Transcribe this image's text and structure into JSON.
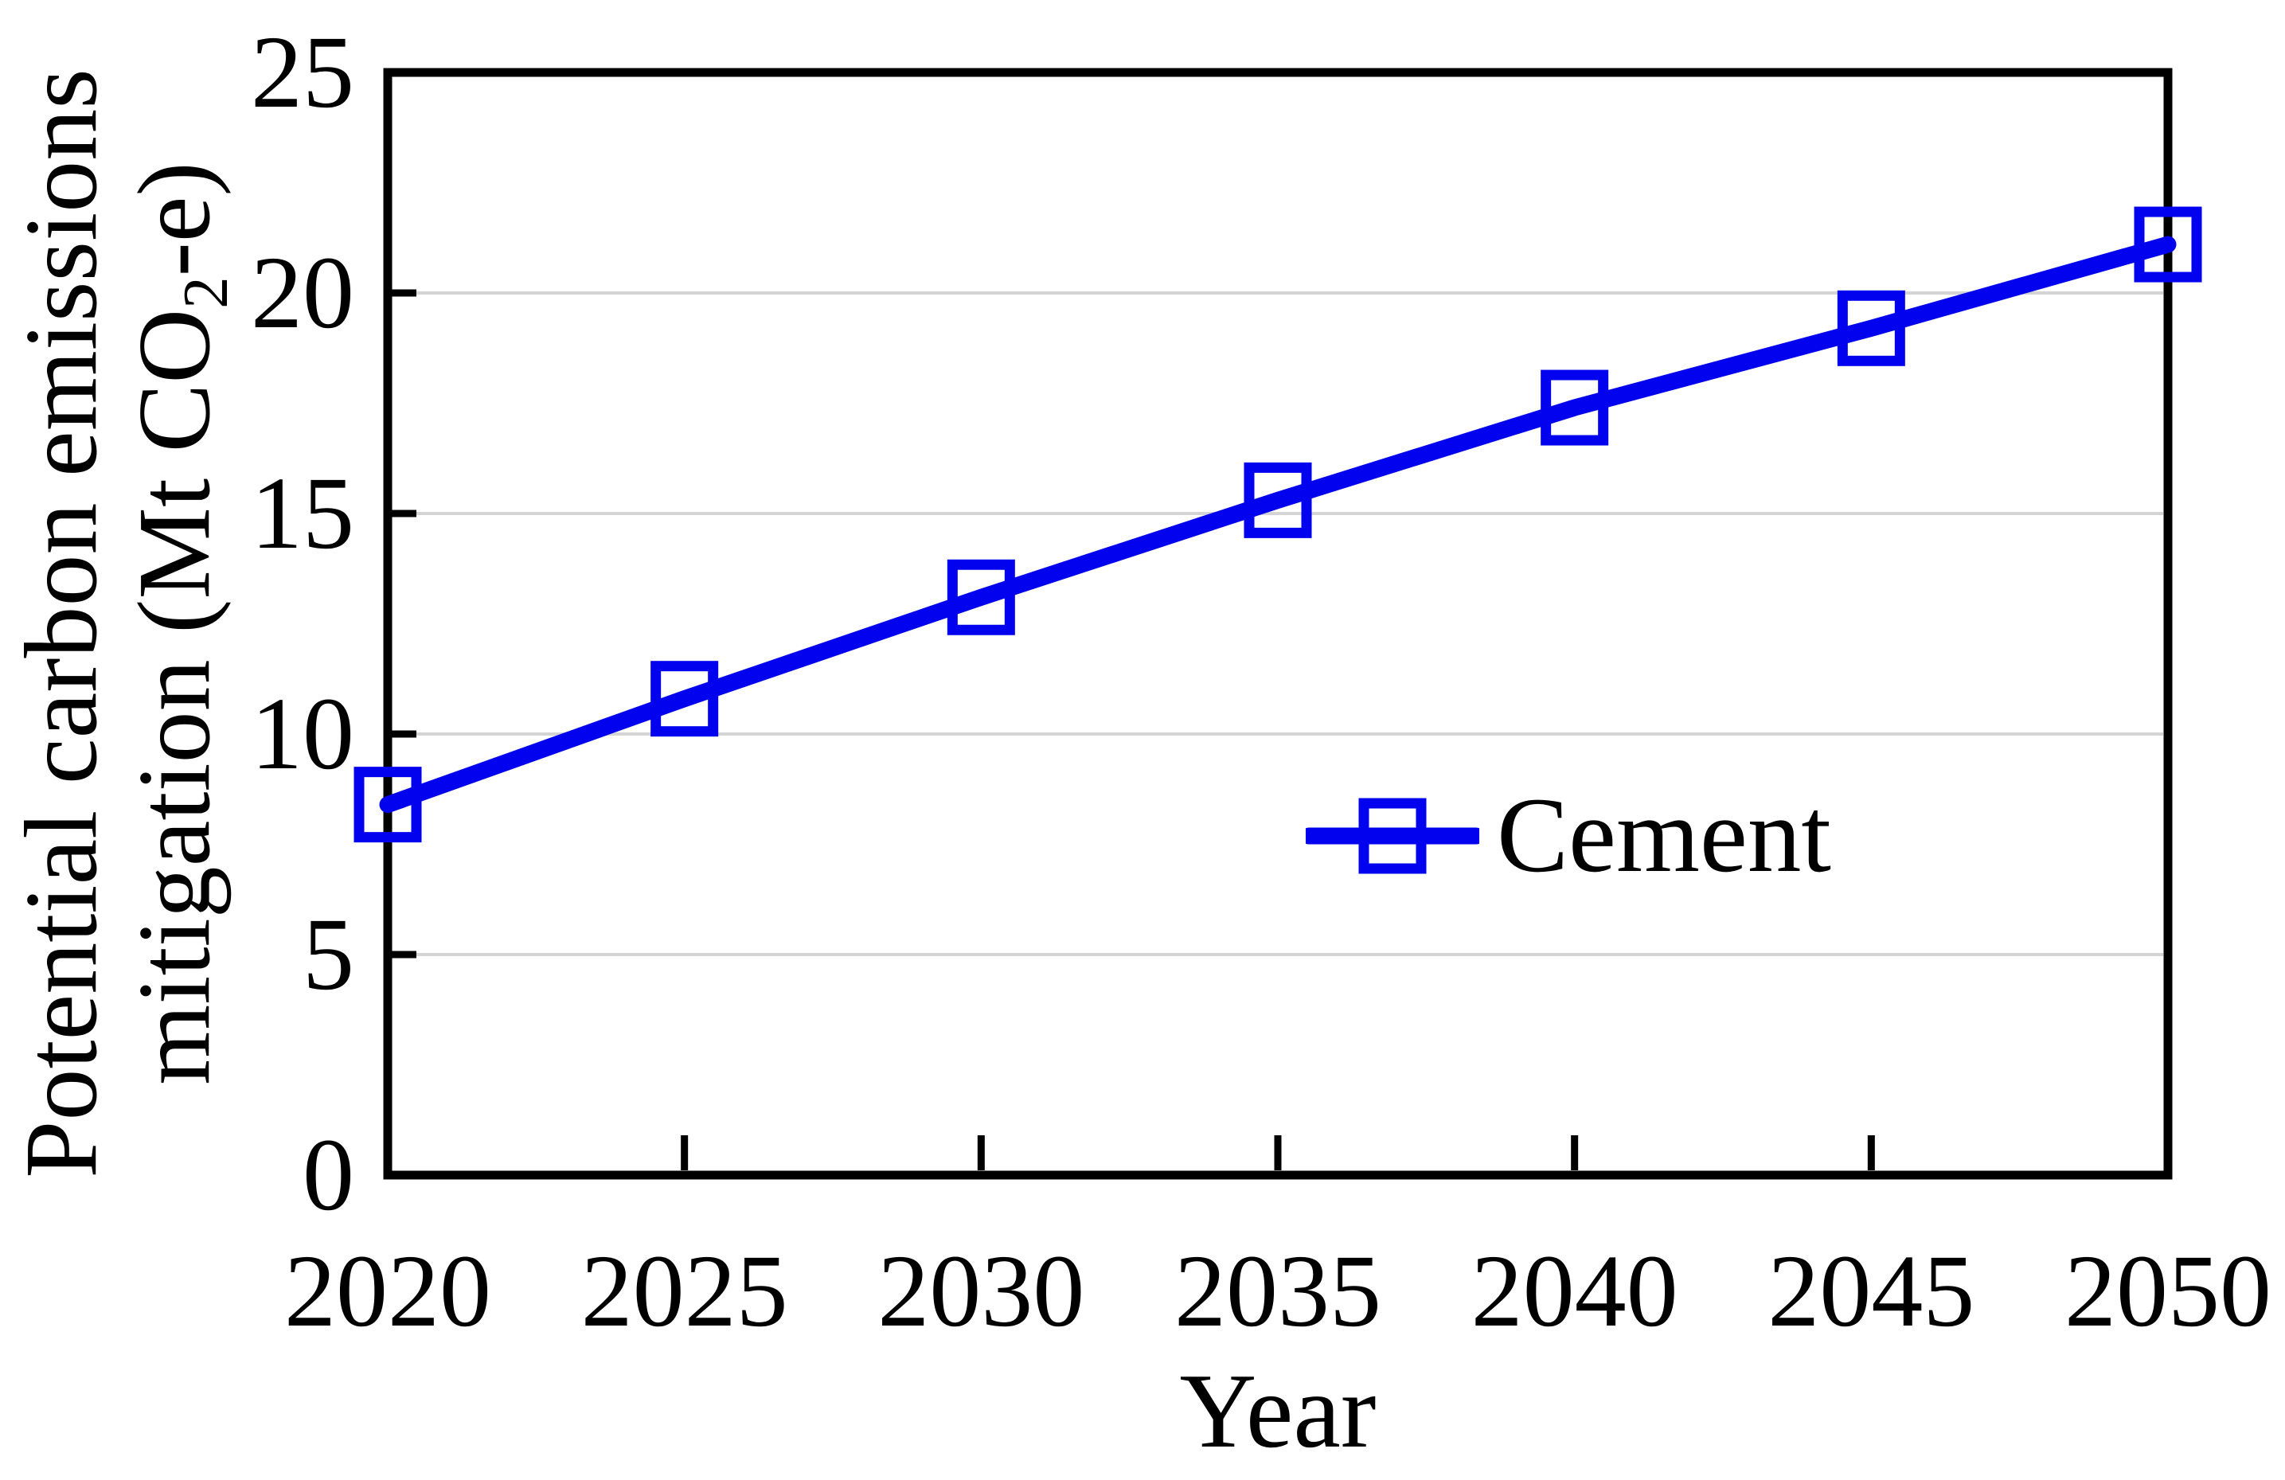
{
  "figure": {
    "xlabel": "Year",
    "ylabel_line1": "Potential carbon emissions",
    "ylabel_line2_prefix": "mitigation (Mt CO",
    "ylabel_line2_sub": "2",
    "ylabel_line2_suffix": "-e)",
    "legend": {
      "label": "Cement"
    }
  },
  "chart_data": {
    "type": "line",
    "title": "",
    "xlabel": "Year",
    "ylabel": "Potential carbon emissions mitigation (Mt CO2-e)",
    "categories": [
      2020,
      2025,
      2030,
      2035,
      2040,
      2045,
      2050
    ],
    "series": [
      {
        "name": "Cement",
        "x": [
          2020,
          2025,
          2030,
          2035,
          2040,
          2045,
          2050
        ],
        "values": [
          8.4,
          10.8,
          13.1,
          15.3,
          17.4,
          19.2,
          21.1
        ],
        "color": "#0202ee",
        "marker": "open-square"
      }
    ],
    "x_ticks": [
      "2020",
      "2025",
      "2030",
      "2035",
      "2040",
      "2045",
      "2050"
    ],
    "y_ticks": [
      "0",
      "5",
      "10",
      "15",
      "20",
      "25"
    ],
    "y_tick_values": [
      0,
      5,
      10,
      15,
      20,
      25
    ],
    "xlim": [
      2020,
      2050
    ],
    "ylim": [
      0,
      25
    ],
    "grid": "horizontal",
    "gridline_values": [
      5,
      10,
      15,
      20
    ],
    "legend_position": "inside-center-right",
    "colors": {
      "series": "#0202ee",
      "axis": "#000000",
      "gridline": "#d4d4d4",
      "text": "#000000",
      "background": "#ffffff"
    }
  }
}
